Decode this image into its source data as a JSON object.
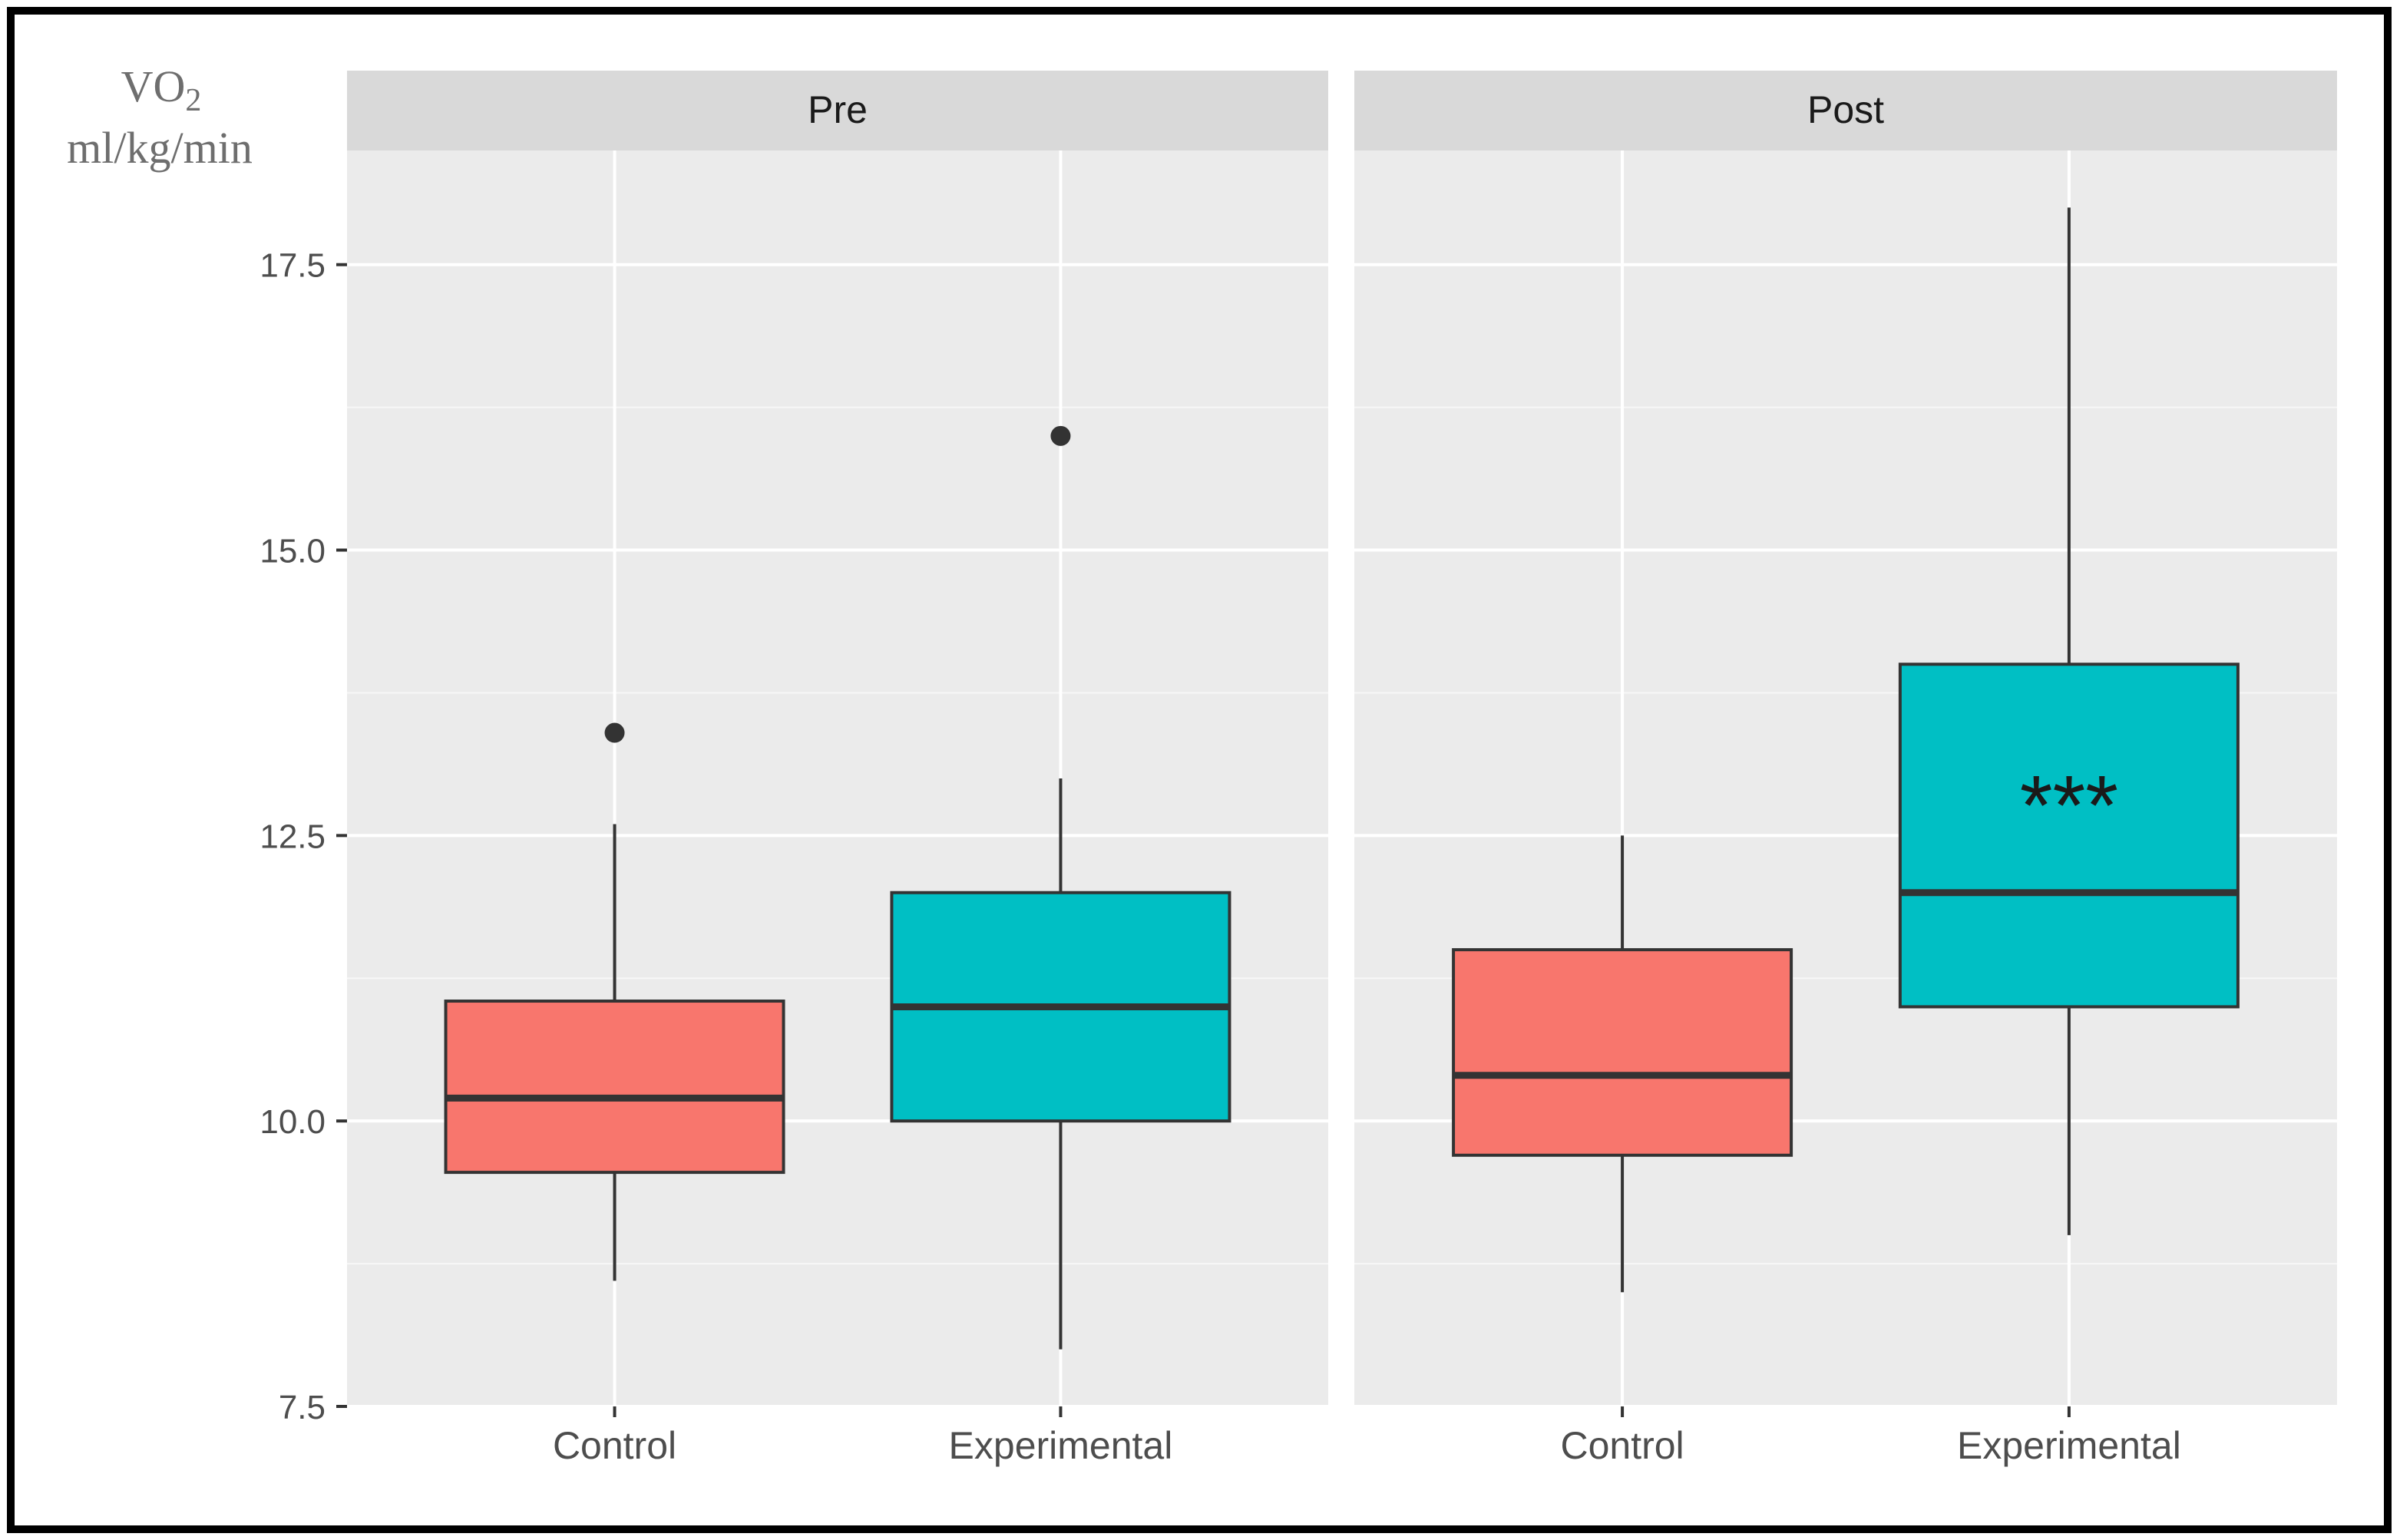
{
  "chart_data": {
    "type": "box",
    "ylabel_main": "VO",
    "ylabel_sub": "2",
    "ylabel_units": "ml/kg/min",
    "ylim": [
      7.5,
      18.5
    ],
    "yticks": [
      7.5,
      10.0,
      12.5,
      15.0,
      17.5
    ],
    "ytick_labels": [
      "7.5",
      "10.0",
      "12.5",
      "15.0",
      "17.5"
    ],
    "categories": [
      "Control",
      "Experimental"
    ],
    "colors": {
      "Control": "#f8766d",
      "Experimental": "#00bfc4"
    },
    "panels": [
      {
        "label": "Pre",
        "boxes": [
          {
            "group": "Control",
            "min": 8.6,
            "q1": 9.55,
            "median": 10.2,
            "q3": 11.05,
            "max": 12.6,
            "outliers": [
              13.4
            ]
          },
          {
            "group": "Experimental",
            "min": 8.0,
            "q1": 10.0,
            "median": 11.0,
            "q3": 12.0,
            "max": 13.0,
            "outliers": [
              16.0
            ]
          }
        ],
        "annotations": []
      },
      {
        "label": "Post",
        "boxes": [
          {
            "group": "Control",
            "min": 8.5,
            "q1": 9.7,
            "median": 10.4,
            "q3": 11.5,
            "max": 12.5,
            "outliers": []
          },
          {
            "group": "Experimental",
            "min": 9.0,
            "q1": 11.0,
            "median": 12.0,
            "q3": 14.0,
            "max": 18.0,
            "outliers": []
          }
        ],
        "annotations": [
          {
            "group": "Experimental",
            "text": "***",
            "y": 12.9
          }
        ]
      }
    ]
  }
}
